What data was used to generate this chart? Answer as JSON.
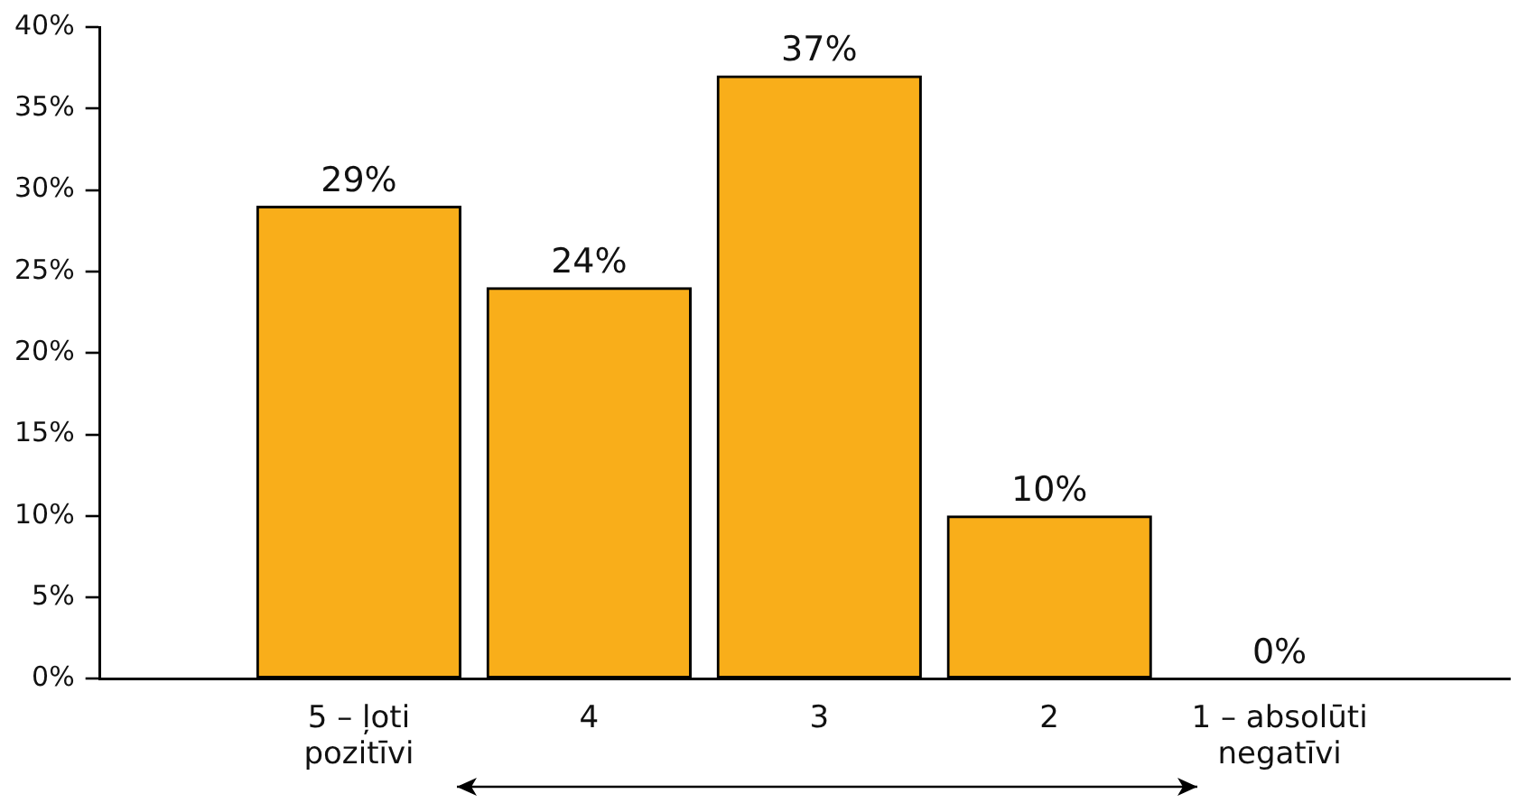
{
  "chart_data": {
    "type": "bar",
    "categories": [
      "5 – ļoti pozitīvi",
      "4",
      "3",
      "2",
      "1 – absolūti negatīvi"
    ],
    "values": [
      29,
      24,
      37,
      10,
      0
    ],
    "value_labels": [
      "29%",
      "24%",
      "37%",
      "10%",
      "0%"
    ],
    "color": "#f9ae1a",
    "ylim": [
      0,
      40
    ],
    "yticks": [
      {
        "value": 0,
        "label": "0%"
      },
      {
        "value": 5,
        "label": "5%"
      },
      {
        "value": 10,
        "label": "10%"
      },
      {
        "value": 15,
        "label": "15%"
      },
      {
        "value": 20,
        "label": "20%"
      },
      {
        "value": 25,
        "label": "25%"
      },
      {
        "value": 30,
        "label": "30%"
      },
      {
        "value": 35,
        "label": "35%"
      },
      {
        "value": 40,
        "label": "40%"
      }
    ],
    "grid": false,
    "legend": false
  }
}
